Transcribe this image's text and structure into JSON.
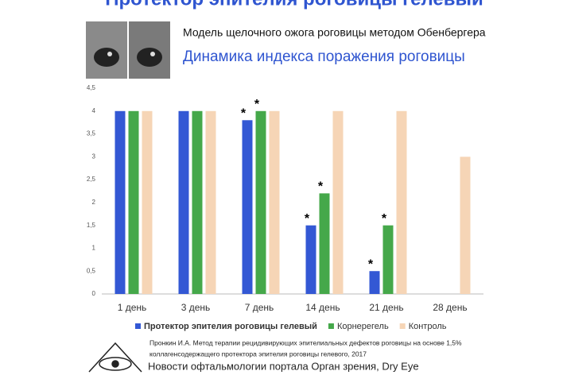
{
  "header": {
    "title": "Протектор эпителия роговицы гелевый",
    "subtitle": "Модель щелочного ожога роговицы методом Обенбергера"
  },
  "chart_data": {
    "type": "bar",
    "title": "Динамика индекса поражения роговицы",
    "categories": [
      "1 день",
      "3 день",
      "7 день",
      "14 день",
      "21 день",
      "28 день"
    ],
    "series": [
      {
        "name": "Протектор эпителия роговицы гелевый",
        "color": "#3358d4",
        "values": [
          4,
          4,
          3.8,
          1.5,
          0.5,
          null
        ],
        "value_labels": [
          null,
          null,
          "*",
          "*",
          "*",
          null
        ]
      },
      {
        "name": "Корнерегель",
        "color": "#45a84a",
        "values": [
          4,
          4,
          4,
          2.2,
          1.5,
          null
        ],
        "value_labels": [
          null,
          null,
          "*",
          "*",
          "*",
          null
        ]
      },
      {
        "name": "Контроль",
        "color": "#f6d5b6",
        "values": [
          4,
          4,
          4,
          4,
          4,
          3
        ]
      }
    ],
    "ylim": [
      0,
      4.5
    ],
    "yticks": [
      0,
      {
        "value": 0.5,
        "label": "0,5"
      },
      1,
      {
        "value": 1.5,
        "label": "1,5"
      },
      2,
      {
        "value": 2.5,
        "label": "2,5"
      },
      3,
      {
        "value": 3.5,
        "label": "3,5"
      },
      4,
      {
        "value": 4.5,
        "label": "4,5"
      }
    ],
    "legend": "bottom"
  },
  "footer": {
    "reference": [
      "Пронкин И.А. Метод терапии рецидивирующих эпителиальных дефектов роговицы на основе 1,5%",
      "коллагенсодержащего протектора эпителия роговицы гелевого, 2017"
    ],
    "portal": "Новости офтальмологии портала Орган зрения, Dry Eye"
  }
}
